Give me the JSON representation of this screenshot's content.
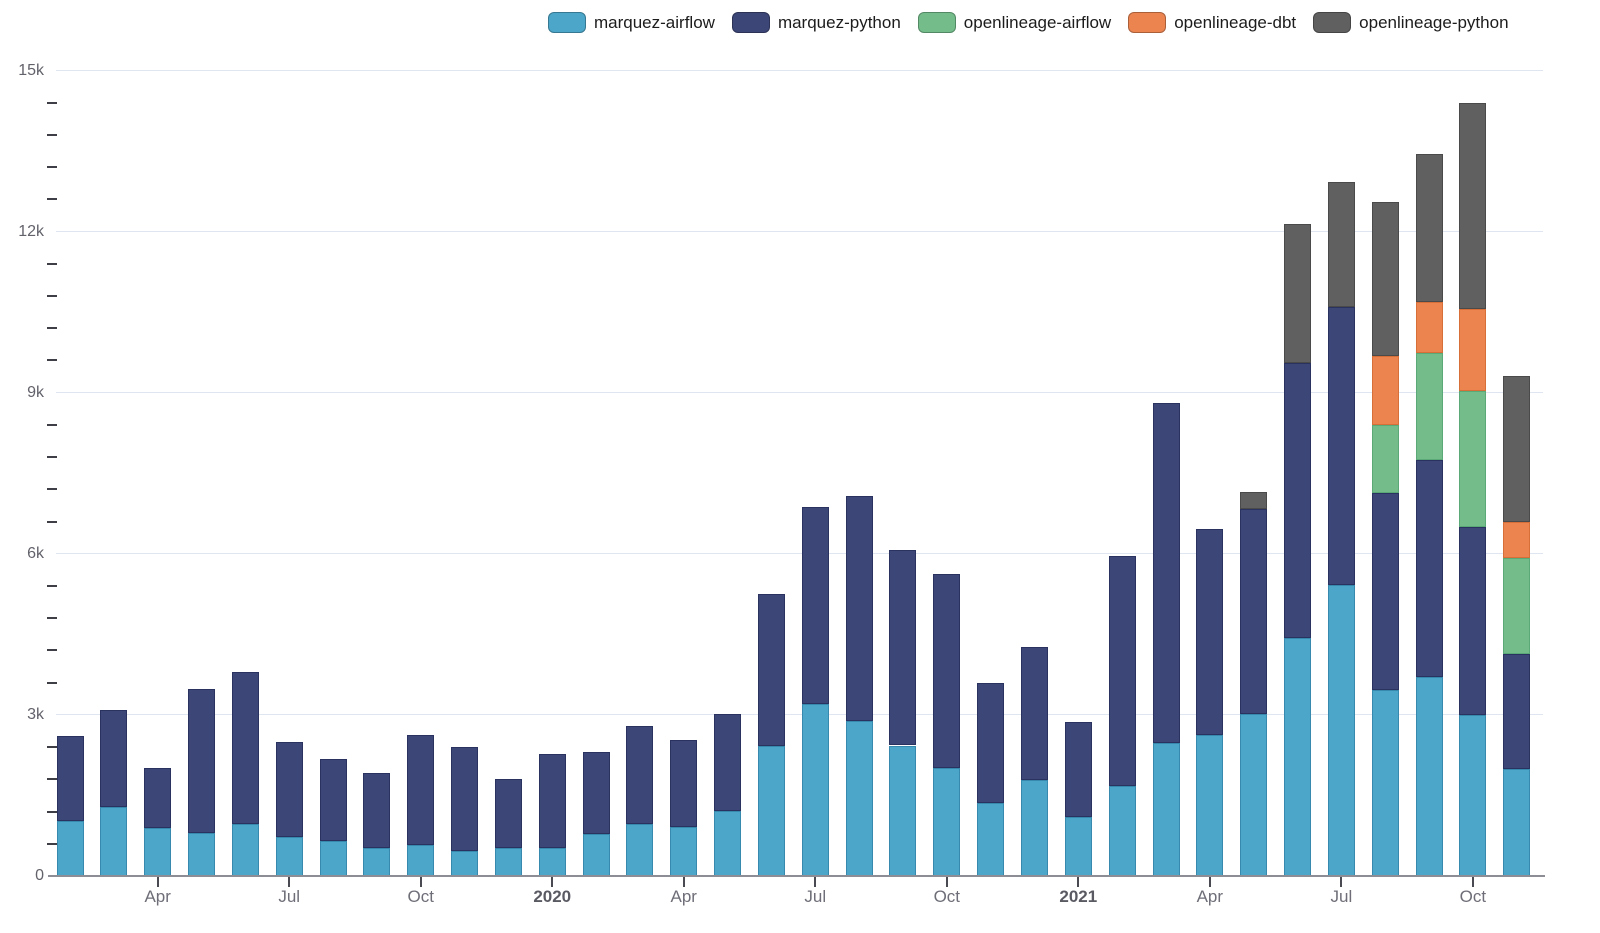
{
  "legend": {
    "items": [
      "marquez-airflow",
      "marquez-python",
      "openlineage-airflow",
      "openlineage-dbt",
      "openlineage-python"
    ]
  },
  "colors": {
    "marquez_airflow": "#4BA6C9",
    "marquez_python": "#3C4677",
    "openlineage_airflow": "#74BD8B",
    "openlineage_dbt": "#EC8450",
    "openlineage_python": "#606060",
    "gridline": "#E0E6F1",
    "axis_line": "#8D8D95"
  },
  "chart_data": {
    "type": "bar",
    "stacked": true,
    "title": "",
    "xlabel": "",
    "ylabel": "",
    "ylim": [
      0,
      15000
    ],
    "grid": true,
    "legend_position": "top",
    "categories": [
      "Feb 2019",
      "Mar 2019",
      "Apr 2019",
      "May 2019",
      "Jun 2019",
      "Jul 2019",
      "Aug 2019",
      "Sep 2019",
      "Oct 2019",
      "Nov 2019",
      "Dec 2019",
      "Jan 2020",
      "Feb 2020",
      "Mar 2020",
      "Apr 2020",
      "May 2020",
      "Jun 2020",
      "Jul 2020",
      "Aug 2020",
      "Sep 2020",
      "Oct 2020",
      "Nov 2020",
      "Dec 2020",
      "Jan 2021",
      "Feb 2021",
      "Mar 2021",
      "Apr 2021",
      "May 2021",
      "Jun 2021",
      "Jul 2021",
      "Aug 2021",
      "Sep 2021",
      "Oct 2021",
      "Nov 2021"
    ],
    "series": [
      {
        "name": "marquez-airflow",
        "color": "#4BA6C9",
        "border": "#3889AE",
        "values": [
          1030,
          1280,
          900,
          800,
          970,
          720,
          660,
          520,
          570,
          470,
          520,
          520,
          780,
          970,
          910,
          1210,
          2420,
          3210,
          2880,
          2430,
          2010,
          1360,
          1780,
          1090,
          1670,
          2470,
          2630,
          3010,
          4440,
          5420,
          3470,
          3710,
          3000,
          2000
        ]
      },
      {
        "name": "marquez-python",
        "color": "#3C4677",
        "border": "#2A3260",
        "values": [
          1570,
          1810,
          1110,
          2680,
          2820,
          1770,
          1520,
          1400,
          2050,
          1930,
          1290,
          1760,
          1520,
          1820,
          1620,
          1810,
          2830,
          3670,
          4200,
          3640,
          3620,
          2240,
          2480,
          1770,
          4290,
          6340,
          3830,
          3820,
          5120,
          5170,
          3660,
          4040,
          3500,
          2130
        ]
      },
      {
        "name": "openlineage-airflow",
        "color": "#74BD8B",
        "border": "#5AA977",
        "values": [
          0,
          0,
          0,
          0,
          0,
          0,
          0,
          0,
          0,
          0,
          0,
          0,
          0,
          0,
          0,
          0,
          0,
          0,
          0,
          0,
          0,
          0,
          0,
          0,
          0,
          0,
          0,
          0,
          0,
          0,
          1260,
          1980,
          2540,
          1790
        ]
      },
      {
        "name": "openlineage-dbt",
        "color": "#EC8450",
        "border": "#D76F38",
        "values": [
          0,
          0,
          0,
          0,
          0,
          0,
          0,
          0,
          0,
          0,
          0,
          0,
          0,
          0,
          0,
          0,
          0,
          0,
          0,
          0,
          0,
          0,
          0,
          0,
          0,
          0,
          0,
          0,
          0,
          0,
          1300,
          950,
          1510,
          680
        ]
      },
      {
        "name": "openlineage-python",
        "color": "#606060",
        "border": "#4A4A4A",
        "values": [
          0,
          0,
          0,
          0,
          0,
          0,
          0,
          0,
          0,
          0,
          0,
          0,
          0,
          0,
          0,
          0,
          0,
          0,
          0,
          0,
          0,
          0,
          0,
          0,
          0,
          0,
          0,
          330,
          2590,
          2340,
          2870,
          2760,
          3850,
          2710
        ]
      }
    ],
    "y_axis": {
      "ticks": [
        {
          "value": 0,
          "label": "0"
        },
        {
          "value": 3000,
          "label": "3k"
        },
        {
          "value": 6000,
          "label": "6k"
        },
        {
          "value": 9000,
          "label": "9k"
        },
        {
          "value": 12000,
          "label": "12k"
        },
        {
          "value": 15000,
          "label": "15k"
        }
      ],
      "minor_step": 600
    },
    "x_axis": {
      "ticks": [
        {
          "index": 2,
          "label": "Apr",
          "bold": false
        },
        {
          "index": 5,
          "label": "Jul",
          "bold": false
        },
        {
          "index": 8,
          "label": "Oct",
          "bold": false
        },
        {
          "index": 11,
          "label": "2020",
          "bold": true
        },
        {
          "index": 14,
          "label": "Apr",
          "bold": false
        },
        {
          "index": 17,
          "label": "Jul",
          "bold": false
        },
        {
          "index": 20,
          "label": "Oct",
          "bold": false
        },
        {
          "index": 23,
          "label": "2021",
          "bold": true
        },
        {
          "index": 26,
          "label": "Apr",
          "bold": false
        },
        {
          "index": 29,
          "label": "Jul",
          "bold": false
        },
        {
          "index": 32,
          "label": "Oct",
          "bold": false
        }
      ]
    }
  }
}
